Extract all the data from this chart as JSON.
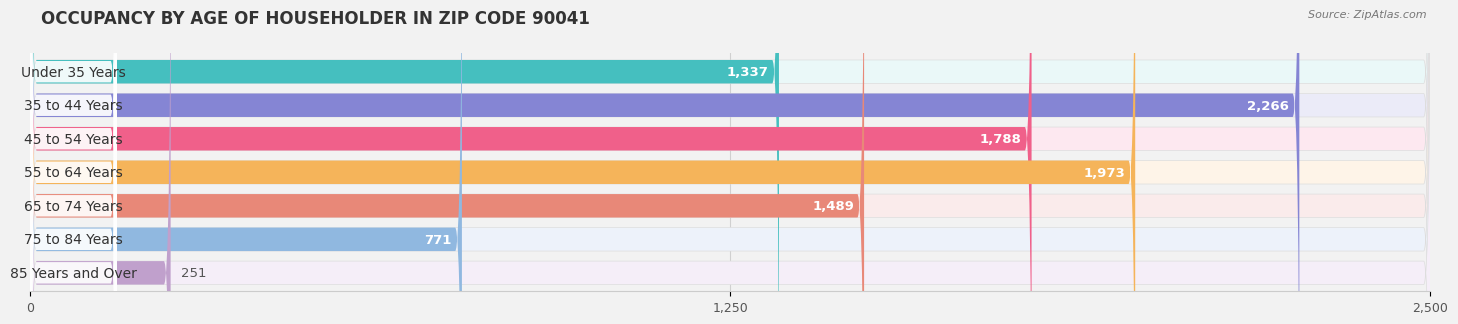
{
  "title": "OCCUPANCY BY AGE OF HOUSEHOLDER IN ZIP CODE 90041",
  "source": "Source: ZipAtlas.com",
  "categories": [
    "Under 35 Years",
    "35 to 44 Years",
    "45 to 54 Years",
    "55 to 64 Years",
    "65 to 74 Years",
    "75 to 84 Years",
    "85 Years and Over"
  ],
  "values": [
    1337,
    2266,
    1788,
    1973,
    1489,
    771,
    251
  ],
  "bar_colors": [
    "#45bfbf",
    "#8585d4",
    "#f0608a",
    "#f5b45a",
    "#e88878",
    "#90b8e0",
    "#c0a0cc"
  ],
  "bar_bg_colors": [
    "#eaf8f8",
    "#ebebf8",
    "#fde8f0",
    "#fef4e8",
    "#faebeb",
    "#edf2fa",
    "#f5eef8"
  ],
  "xlim": [
    0,
    2500
  ],
  "xticks": [
    0,
    1250,
    2500
  ],
  "background_color": "#f2f2f2",
  "bar_height": 0.7,
  "title_fontsize": 12,
  "label_fontsize": 10,
  "value_fontsize": 9.5
}
